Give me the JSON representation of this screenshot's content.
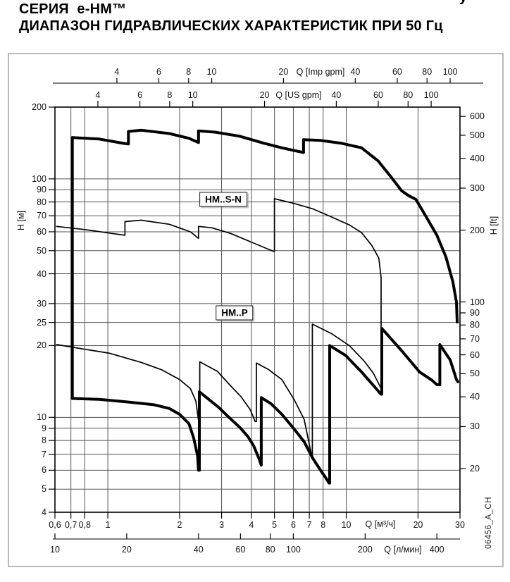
{
  "title": {
    "line1": "СЕРИЯ  e-HM™",
    "line2": "ДИАПАЗОН ГИДРАВЛИЧЕСКИХ ХАРАКТЕРИСТИК ПРИ 50 Гц",
    "stray_glyph": "у"
  },
  "footer_code": "06456_A_CH",
  "colors": {
    "curve": "#000000",
    "grid": "#555555",
    "frame": "#000000",
    "axis_line": "#333333",
    "outer_box": "#8a8a8a",
    "background": "#ffffff"
  },
  "chart_data": {
    "type": "line",
    "subtype": "pump-range-envelope-loglog",
    "grid": "on",
    "x_range_m3h": [
      0.6,
      30
    ],
    "y_range_m": [
      4,
      200
    ],
    "grid_x_m3h": [
      0.7,
      0.8,
      1,
      2,
      3,
      4,
      5,
      6,
      7,
      8,
      10,
      20
    ],
    "grid_y_m": [
      5,
      6,
      7,
      8,
      9,
      10,
      20,
      25,
      30,
      40,
      50,
      60,
      70,
      80,
      90,
      100
    ],
    "axes": {
      "q_imp_gpm": {
        "title": "Q [Imp gpm]",
        "unit_to_m3h": 0.272765,
        "ticks": [
          {
            "v": 4,
            "label": "4"
          },
          {
            "v": 6,
            "label": "6"
          },
          {
            "v": 8,
            "label": "8"
          },
          {
            "v": 10,
            "label": "10"
          },
          {
            "v": 20,
            "label": "20"
          },
          {
            "v": 40,
            "label": "40"
          },
          {
            "v": 60,
            "label": "60"
          },
          {
            "v": 80,
            "label": "80"
          },
          {
            "v": 100,
            "label": "100"
          }
        ]
      },
      "q_us_gpm": {
        "title": "Q [US gpm]",
        "unit_to_m3h": 0.227125,
        "ticks": [
          {
            "v": 4,
            "label": "4"
          },
          {
            "v": 6,
            "label": "6"
          },
          {
            "v": 8,
            "label": "8"
          },
          {
            "v": 10,
            "label": "10"
          },
          {
            "v": 20,
            "label": "20"
          },
          {
            "v": 40,
            "label": "40"
          },
          {
            "v": 60,
            "label": "60"
          },
          {
            "v": 80,
            "label": "80"
          },
          {
            "v": 100,
            "label": "100"
          }
        ]
      },
      "q_m3h": {
        "title": "Q [м³/ч]",
        "unit_to_m3h": 1,
        "ticks": [
          {
            "v": 0.6,
            "label": "0,6"
          },
          {
            "v": 0.7,
            "label": "0,7"
          },
          {
            "v": 0.8,
            "label": "0,8"
          },
          {
            "v": 1,
            "label": "1"
          },
          {
            "v": 2,
            "label": "2"
          },
          {
            "v": 3,
            "label": "3"
          },
          {
            "v": 4,
            "label": "4"
          },
          {
            "v": 5,
            "label": "5"
          },
          {
            "v": 6,
            "label": "6"
          },
          {
            "v": 7,
            "label": "7"
          },
          {
            "v": 8,
            "label": "8"
          },
          {
            "v": 10,
            "label": "10"
          },
          {
            "v": 20,
            "label": "20"
          },
          {
            "v": 30,
            "label": "30"
          }
        ]
      },
      "q_l_min": {
        "title": "Q [л/мин]",
        "unit_to_m3h": 0.06,
        "ticks": [
          {
            "v": 10,
            "label": "10"
          },
          {
            "v": 20,
            "label": "20"
          },
          {
            "v": 40,
            "label": "40"
          },
          {
            "v": 60,
            "label": "60"
          },
          {
            "v": 80,
            "label": "80"
          },
          {
            "v": 100,
            "label": "100"
          },
          {
            "v": 200,
            "label": "200"
          },
          {
            "v": 400,
            "label": "400"
          }
        ]
      },
      "h_m": {
        "title": "H [м]",
        "ticks": [
          {
            "v": 4,
            "label": "4"
          },
          {
            "v": 5,
            "label": "5"
          },
          {
            "v": 6,
            "label": "6"
          },
          {
            "v": 7,
            "label": "7"
          },
          {
            "v": 8,
            "label": "8"
          },
          {
            "v": 9,
            "label": "9"
          },
          {
            "v": 10,
            "label": "10"
          },
          {
            "v": 20,
            "label": "20"
          },
          {
            "v": 25,
            "label": "25"
          },
          {
            "v": 30,
            "label": "30"
          },
          {
            "v": 40,
            "label": "40"
          },
          {
            "v": 50,
            "label": "50"
          },
          {
            "v": 60,
            "label": "60"
          },
          {
            "v": 70,
            "label": "70"
          },
          {
            "v": 80,
            "label": "80"
          },
          {
            "v": 90,
            "label": "90"
          },
          {
            "v": 100,
            "label": "100"
          },
          {
            "v": 200,
            "label": "200"
          }
        ]
      },
      "h_ft": {
        "title": "H [ft]",
        "m_per_ft": 0.3048,
        "ticks": [
          {
            "v": 20,
            "label": "20"
          },
          {
            "v": 30,
            "label": "30"
          },
          {
            "v": 40,
            "label": "40"
          },
          {
            "v": 50,
            "label": "50"
          },
          {
            "v": 60,
            "label": "60"
          },
          {
            "v": 70,
            "label": "70"
          },
          {
            "v": 80,
            "label": "80"
          },
          {
            "v": 90,
            "label": "90"
          },
          {
            "v": 100,
            "label": "100"
          },
          {
            "v": 200,
            "label": "200"
          },
          {
            "v": 300,
            "label": "300"
          },
          {
            "v": 400,
            "label": "400"
          },
          {
            "v": 500,
            "label": "500"
          },
          {
            "v": 600,
            "label": "600"
          }
        ]
      }
    },
    "region_labels": [
      {
        "text": "HM..S-N",
        "q": 3.05,
        "h": 82
      },
      {
        "text": "HM..P",
        "q": 3.4,
        "h": 27.5
      }
    ],
    "series": [
      {
        "name": "HM..S-N upper boundary (thick)",
        "style": "thick",
        "points": [
          [
            0.71,
            149
          ],
          [
            0.92,
            147
          ],
          [
            1.16,
            141
          ],
          [
            1.22,
            140
          ],
          [
            1.22,
            158
          ],
          [
            1.38,
            160
          ],
          [
            1.81,
            155
          ],
          [
            2.19,
            148
          ],
          [
            2.4,
            142
          ],
          [
            2.4,
            159
          ],
          [
            2.83,
            157
          ],
          [
            3.57,
            151
          ],
          [
            4.53,
            141
          ],
          [
            5.37,
            135
          ],
          [
            6.62,
            129
          ],
          [
            6.62,
            146
          ],
          [
            7.8,
            145
          ],
          [
            9.57,
            141
          ],
          [
            11.6,
            135
          ],
          [
            13.6,
            119
          ],
          [
            15.4,
            102
          ],
          [
            17.1,
            89
          ],
          [
            18.3,
            85
          ],
          [
            19.6,
            82
          ],
          [
            21.7,
            69
          ],
          [
            24.0,
            58
          ],
          [
            26.2,
            47
          ],
          [
            28.0,
            37
          ],
          [
            29.0,
            30.4
          ],
          [
            29.2,
            25.1
          ]
        ]
      },
      {
        "name": "HM..S-N lower boundary (thin)",
        "style": "thin",
        "points": [
          [
            0.61,
            63.2
          ],
          [
            0.8,
            61.3
          ],
          [
            1.01,
            59.3
          ],
          [
            1.18,
            58.0
          ],
          [
            1.18,
            66.2
          ],
          [
            1.38,
            67.1
          ],
          [
            1.81,
            64.5
          ],
          [
            2.22,
            60.0
          ],
          [
            2.4,
            56.3
          ],
          [
            2.4,
            63.2
          ],
          [
            2.72,
            62.4
          ],
          [
            3.27,
            59.1
          ],
          [
            4.09,
            53.8
          ],
          [
            4.94,
            49.7
          ],
          [
            5.0,
            49.7
          ],
          [
            5.0,
            82.6
          ],
          [
            6.04,
            78.9
          ],
          [
            7.26,
            74.8
          ],
          [
            8.64,
            69.4
          ],
          [
            10.3,
            64.1
          ],
          [
            11.6,
            59.5
          ],
          [
            12.8,
            52.6
          ],
          [
            13.7,
            46.5
          ],
          [
            14.0,
            38.6
          ],
          [
            14.0,
            13.0
          ]
        ]
      },
      {
        "name": "HM..P upper boundary (thin)",
        "style": "thin",
        "points": [
          [
            0.61,
            20.2
          ],
          [
            0.8,
            19.3
          ],
          [
            1.01,
            18.6
          ],
          [
            1.38,
            17.0
          ],
          [
            1.69,
            15.8
          ],
          [
            2.0,
            14.4
          ],
          [
            2.22,
            13.2
          ],
          [
            2.34,
            11.7
          ],
          [
            2.4,
            9.7
          ],
          [
            2.43,
            9.7
          ],
          [
            2.43,
            17.1
          ],
          [
            2.88,
            15.6
          ],
          [
            3.22,
            13.8
          ],
          [
            3.62,
            12.2
          ],
          [
            3.95,
            10.8
          ],
          [
            4.15,
            9.6
          ],
          [
            4.2,
            9.6
          ],
          [
            4.2,
            16.9
          ],
          [
            4.71,
            15.9
          ],
          [
            5.37,
            14.4
          ],
          [
            6.04,
            11.9
          ],
          [
            6.66,
            9.8
          ],
          [
            7.02,
            7.6
          ],
          [
            7.17,
            6.9
          ],
          [
            7.21,
            6.9
          ],
          [
            7.21,
            24.6
          ],
          [
            8.64,
            22.5
          ],
          [
            10.3,
            20.0
          ],
          [
            11.9,
            17.2
          ],
          [
            13.0,
            15.3
          ],
          [
            13.7,
            13.8
          ],
          [
            14.0,
            13.2
          ]
        ]
      },
      {
        "name": "HM..P boundary with left limit (thick)",
        "style": "thick",
        "points": [
          [
            0.71,
            149
          ],
          [
            0.71,
            12.0
          ],
          [
            0.92,
            11.9
          ],
          [
            1.21,
            11.6
          ],
          [
            1.56,
            11.3
          ],
          [
            1.81,
            10.9
          ],
          [
            2.0,
            10.3
          ],
          [
            2.19,
            9.4
          ],
          [
            2.29,
            8.2
          ],
          [
            2.38,
            6.9
          ],
          [
            2.4,
            6.0
          ],
          [
            2.42,
            6.0
          ],
          [
            2.42,
            12.8
          ],
          [
            2.92,
            11.0
          ],
          [
            3.22,
            10.0
          ],
          [
            3.57,
            9.1
          ],
          [
            3.87,
            8.3
          ],
          [
            4.09,
            7.6
          ],
          [
            4.31,
            6.7
          ],
          [
            4.4,
            6.3
          ],
          [
            4.4,
            12.1
          ],
          [
            4.84,
            11.4
          ],
          [
            5.37,
            10.3
          ],
          [
            6.01,
            9.0
          ],
          [
            6.66,
            7.9
          ],
          [
            7.26,
            6.7
          ],
          [
            7.8,
            6.0
          ],
          [
            8.18,
            5.6
          ],
          [
            8.47,
            5.3
          ],
          [
            8.52,
            5.3
          ],
          [
            8.52,
            20.0
          ],
          [
            9.93,
            18.2
          ],
          [
            11.6,
            15.5
          ],
          [
            13.0,
            13.6
          ],
          [
            13.7,
            12.8
          ],
          [
            14.0,
            12.5
          ],
          [
            14.1,
            12.5
          ],
          [
            14.1,
            23.6
          ],
          [
            17.1,
            19.0
          ],
          [
            20.3,
            15.5
          ],
          [
            22.9,
            14.3
          ],
          [
            24.0,
            13.7
          ],
          [
            24.7,
            13.7
          ],
          [
            24.7,
            20.2
          ],
          [
            27.3,
            17.4
          ],
          [
            29.0,
            14.4
          ],
          [
            29.4,
            14.1
          ]
        ]
      }
    ]
  }
}
